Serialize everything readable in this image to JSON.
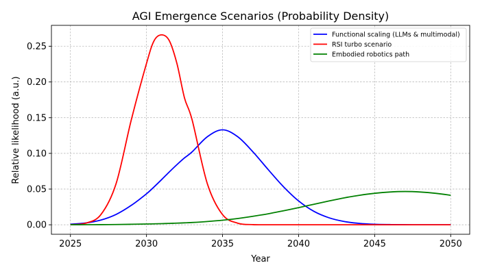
{
  "chart_data": {
    "type": "line",
    "title": "AGI Emergence Scenarios (Probability Density)",
    "xlabel": "Year",
    "ylabel": "Relative likelihood (a.u.)",
    "xlim": [
      2023.75,
      2051.25
    ],
    "ylim": [
      -0.0133,
      0.2793
    ],
    "xticks": [
      2025,
      2030,
      2035,
      2040,
      2045,
      2050
    ],
    "xtick_labels": [
      "2025",
      "2030",
      "2035",
      "2040",
      "2045",
      "2050"
    ],
    "yticks": [
      0.0,
      0.05,
      0.1,
      0.15,
      0.2,
      0.25
    ],
    "ytick_labels": [
      "0.00",
      "0.05",
      "0.10",
      "0.15",
      "0.20",
      "0.25"
    ],
    "grid": true,
    "legend_position": "top-right",
    "x": [
      2025,
      2026,
      2027,
      2028,
      2029,
      2030,
      2030.5,
      2031,
      2031.5,
      2032,
      2032.5,
      2033,
      2034,
      2035,
      2036,
      2037,
      2038,
      2039,
      2040,
      2041,
      2042,
      2043,
      2044,
      2045,
      2046,
      2047,
      2048,
      2049,
      2050
    ],
    "series": [
      {
        "name": "Functional scaling (LLMs & multimodal)",
        "color": "#0000ff",
        "values": [
          0.0008,
          0.0025,
          0.0066,
          0.0145,
          0.0272,
          0.0434,
          0.0531,
          0.0634,
          0.074,
          0.0842,
          0.0937,
          0.1021,
          0.1233,
          0.133,
          0.1233,
          0.1021,
          0.0773,
          0.0534,
          0.0334,
          0.0189,
          0.0098,
          0.0046,
          0.0019,
          0.0007,
          0.0003,
          0.0001,
          0.0,
          0.0,
          0.0
        ]
      },
      {
        "name": "RSI turbo scenario",
        "color": "#ff0000",
        "values": [
          0.0002,
          0.0022,
          0.0142,
          0.0575,
          0.1469,
          0.2259,
          0.2578,
          0.266,
          0.2578,
          0.2259,
          0.1775,
          0.1469,
          0.0575,
          0.0142,
          0.0022,
          0.0002,
          0.0,
          0.0,
          0.0,
          0.0,
          0.0,
          0.0,
          0.0,
          0.0,
          0.0,
          0.0,
          0.0,
          0.0,
          0.0
        ]
      },
      {
        "name": "Embodied robotics path",
        "color": "#008000",
        "values": [
          0.0001,
          0.0001,
          0.0002,
          0.0004,
          0.0007,
          0.0011,
          0.0013,
          0.0016,
          0.0019,
          0.0023,
          0.0027,
          0.0032,
          0.0046,
          0.0064,
          0.0088,
          0.0119,
          0.0154,
          0.0196,
          0.024,
          0.0287,
          0.0333,
          0.0377,
          0.0413,
          0.0441,
          0.0459,
          0.0466,
          0.0459,
          0.0441,
          0.0413
        ]
      }
    ]
  }
}
